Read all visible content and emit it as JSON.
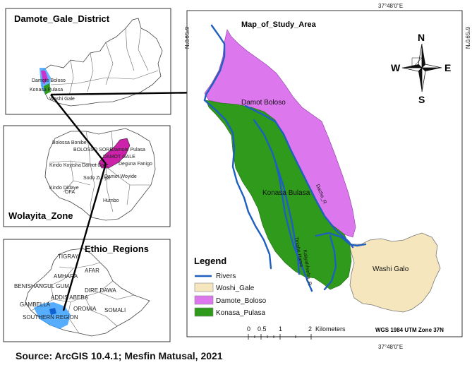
{
  "insets": {
    "district": {
      "title": "Damote_Gale_District",
      "labels": [
        "Damote Boloso",
        "Konasa Pulasa",
        "Washi Gale"
      ]
    },
    "zone": {
      "title": "Wolayita_Zone",
      "labels": [
        "Bolossa Bonibe",
        "BOLOSSO SORE",
        "Damote Pulasa",
        "DAMOT GALE",
        "Kindo Koyisha",
        "Damot Sore",
        "Deguna Fanigo",
        "Sodo Zuriya",
        "Damot Woyide",
        "Kindo Didaye",
        "OFA",
        "Humbo"
      ]
    },
    "ethiopia": {
      "title": "Ethio_Regions",
      "labels": [
        "TIGRAY",
        "AFAR",
        "AMHARA",
        "BENISHANGUL GUM",
        "DIRE DAWA",
        "ADDIS ABEBA",
        "GAMBELLA",
        "OROMIA",
        "SOMALI",
        "SOUTHERN REGION"
      ]
    }
  },
  "main_map": {
    "title": "Map_of_Study_Area",
    "top_coord": "37°48'0\"E",
    "bottom_coord": "37°48'0\"E",
    "left_coord": "6°59'0\"N",
    "right_coord": "6°59'0\"N",
    "compass": {
      "N": "N",
      "S": "S",
      "E": "E",
      "W": "W"
    },
    "area_labels": {
      "damot_boloso": "Damot Boloso",
      "konasa_bulasa": "Konasa Bulasa",
      "washi_galo": "Washi Galo"
    },
    "river_labels": {
      "dache": "Dache_R",
      "tinishe": "Tinishe Hama",
      "kaliyah": "Kaliyah/sinha_R"
    },
    "legend": {
      "title": "Legend",
      "items": [
        {
          "label": "Rivers",
          "color": "#1f5fbf"
        },
        {
          "label": "Woshi_Gale",
          "color": "#f5e6bd"
        },
        {
          "label": "Damote_Boloso",
          "color": "#dd77ee"
        },
        {
          "label": "Konasa_Pulasa",
          "color": "#2f9a1b"
        }
      ]
    },
    "scalebar": {
      "ticks": [
        "0",
        "0.5",
        "1",
        "2"
      ],
      "unit": "Kilometers"
    },
    "projection": "WGS 1984 UTM Zone 37N"
  },
  "caption": "Source: ArcGIS 10.4.1; Mesfin Matusal, 2021"
}
